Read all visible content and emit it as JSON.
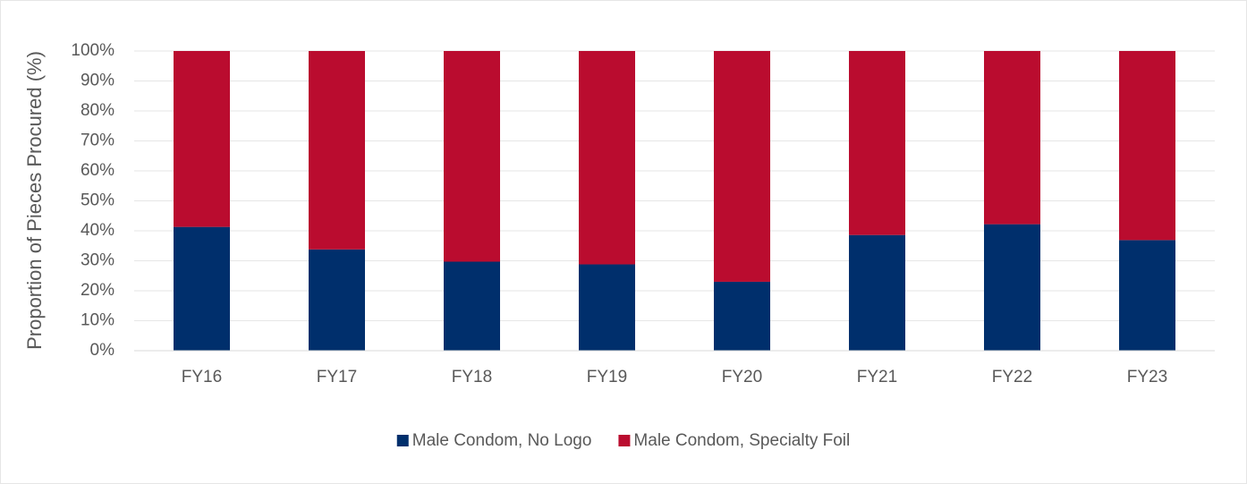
{
  "chart_data": {
    "type": "stacked_bar",
    "y_axis_label": "Proportion of Pieces Procured (%)",
    "categories": [
      "FY16",
      "FY17",
      "FY18",
      "FY19",
      "FY20",
      "FY21",
      "FY22",
      "FY23"
    ],
    "series": [
      {
        "name": "Male Condom, No Logo",
        "color": "#002f6c",
        "values": [
          41.3,
          33.8,
          29.7,
          28.8,
          23.0,
          38.6,
          42.2,
          36.9
        ]
      },
      {
        "name": "Male Condom, Specialty Foil",
        "color": "#ba0c2f",
        "values": [
          58.7,
          66.2,
          70.3,
          71.2,
          77.0,
          61.4,
          57.8,
          63.1
        ]
      }
    ],
    "ylim": [
      0,
      100
    ],
    "yticks": [
      {
        "value": 0,
        "label": "0%"
      },
      {
        "value": 10,
        "label": "10%"
      },
      {
        "value": 20,
        "label": "20%"
      },
      {
        "value": 30,
        "label": "30%"
      },
      {
        "value": 40,
        "label": "40%"
      },
      {
        "value": 50,
        "label": "50%"
      },
      {
        "value": 60,
        "label": "60%"
      },
      {
        "value": 70,
        "label": "70%"
      },
      {
        "value": 80,
        "label": "80%"
      },
      {
        "value": 90,
        "label": "90%"
      },
      {
        "value": 100,
        "label": "100%"
      }
    ],
    "grid": true,
    "legend": "bottom"
  }
}
